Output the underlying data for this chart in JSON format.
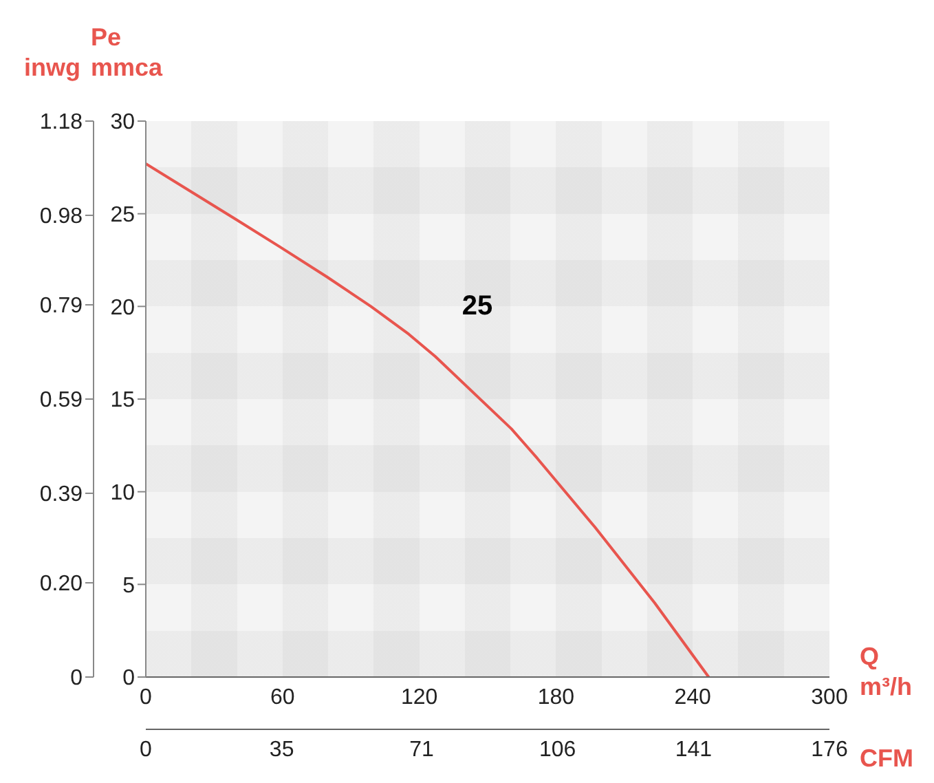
{
  "chart_data": {
    "type": "line",
    "xlabel": "Q m³/h",
    "ylabel": "Pe mmca",
    "y2label": "inwg",
    "x2label": "CFM",
    "xlim": [
      0,
      300
    ],
    "xticks": [
      0,
      60,
      120,
      180,
      240,
      300
    ],
    "ylim": [
      0,
      30
    ],
    "yticks": [
      0,
      5,
      10,
      15,
      20,
      25,
      30
    ],
    "y2lim": [
      0,
      1.18
    ],
    "y2ticks": [
      {
        "value": 0,
        "label": "0"
      },
      {
        "value": 0.2,
        "label": "0.20"
      },
      0.39,
      0.59,
      0.79,
      0.98,
      1.18
    ],
    "x2lim": [
      0,
      176
    ],
    "x2ticks": [
      0,
      35,
      71,
      106,
      141,
      176
    ],
    "marker": "none",
    "annotations": [
      "25"
    ],
    "series": [
      {
        "color": "#e8554e",
        "x": [
          0,
          39.5,
          59,
          79.4,
          98.8,
          115.4,
          127,
          160.4,
          171.8,
          197,
          223.3,
          247
        ],
        "values": [
          27.7,
          24.7,
          23.2,
          21.6,
          20.0,
          18.5,
          17.3,
          13.4,
          11.8,
          8.1,
          4.0,
          0
        ]
      }
    ]
  }
}
